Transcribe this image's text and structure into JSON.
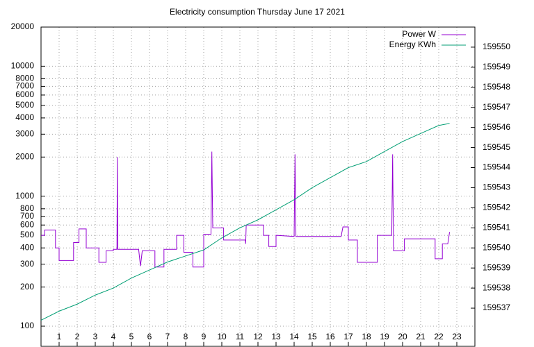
{
  "chart_data": {
    "type": "line",
    "title": "Electricity consumption Thursday June 17 2021",
    "xlim": [
      0,
      24
    ],
    "xticks": [
      1,
      2,
      3,
      4,
      5,
      6,
      7,
      8,
      9,
      10,
      11,
      12,
      13,
      14,
      15,
      16,
      17,
      18,
      19,
      20,
      21,
      22,
      23
    ],
    "ylim": [
      70,
      20000
    ],
    "yscale": "log",
    "yticks": [
      100,
      200,
      300,
      400,
      500,
      600,
      700,
      800,
      1000,
      2000,
      3000,
      4000,
      5000,
      6000,
      7000,
      8000,
      10000,
      20000
    ],
    "y2lim": [
      159535.1,
      159551
    ],
    "y2ticks": [
      159537,
      159538,
      159539,
      159540,
      159541,
      159542,
      159543,
      159544,
      159545,
      159546,
      159547,
      159548,
      159549,
      159550
    ],
    "grid": true,
    "legend": "upper right",
    "series": [
      {
        "name": "Power W",
        "color": "#9400d3",
        "x": [
          0,
          0.2,
          0.2,
          0.8,
          0.8,
          1,
          1,
          1.8,
          1.8,
          2.1,
          2.1,
          2.5,
          2.5,
          3.2,
          3.2,
          3.6,
          3.6,
          4,
          4,
          4.2,
          4.22,
          4.25,
          5.4,
          5.5,
          5.6,
          6.3,
          6.3,
          6.8,
          6.8,
          7.5,
          7.5,
          7.9,
          7.9,
          8.4,
          8.4,
          9,
          9,
          9.4,
          9.45,
          9.5,
          10.1,
          10.1,
          11.3,
          11.32,
          11.35,
          12.3,
          12.3,
          12.6,
          12.6,
          13,
          13,
          14,
          14.05,
          14.1,
          16.6,
          16.7,
          17,
          17,
          17.5,
          17.5,
          18.6,
          18.6,
          19.4,
          19.45,
          19.5,
          20.1,
          20.1,
          21.8,
          21.8,
          22.2,
          22.2,
          22.5,
          22.6
        ],
        "values": [
          500,
          500,
          550,
          550,
          400,
          400,
          320,
          320,
          440,
          440,
          560,
          560,
          400,
          400,
          310,
          310,
          380,
          380,
          390,
          390,
          2000,
          390,
          390,
          290,
          380,
          380,
          285,
          285,
          390,
          390,
          500,
          500,
          370,
          370,
          285,
          285,
          510,
          510,
          2200,
          570,
          570,
          460,
          460,
          430,
          600,
          600,
          500,
          500,
          410,
          410,
          500,
          490,
          2100,
          490,
          490,
          580,
          580,
          460,
          460,
          310,
          310,
          500,
          500,
          2100,
          380,
          380,
          470,
          470,
          330,
          330,
          430,
          430,
          530
        ]
      },
      {
        "name": "Energy KWh",
        "color": "#009e73",
        "axis": "y2",
        "x": [
          0,
          1,
          2,
          3,
          4,
          5,
          6,
          7,
          8,
          9,
          10,
          11,
          12,
          13,
          14,
          15,
          16,
          17,
          18,
          19,
          20,
          21,
          22,
          22.6
        ],
        "values": [
          159536.4,
          159536.85,
          159537.2,
          159537.65,
          159538.0,
          159538.5,
          159538.9,
          159539.3,
          159539.6,
          159539.9,
          159540.5,
          159541.0,
          159541.4,
          159541.9,
          159542.4,
          159543.0,
          159543.5,
          159544.0,
          159544.3,
          159544.8,
          159545.3,
          159545.7,
          159546.1,
          159546.2
        ]
      }
    ]
  }
}
